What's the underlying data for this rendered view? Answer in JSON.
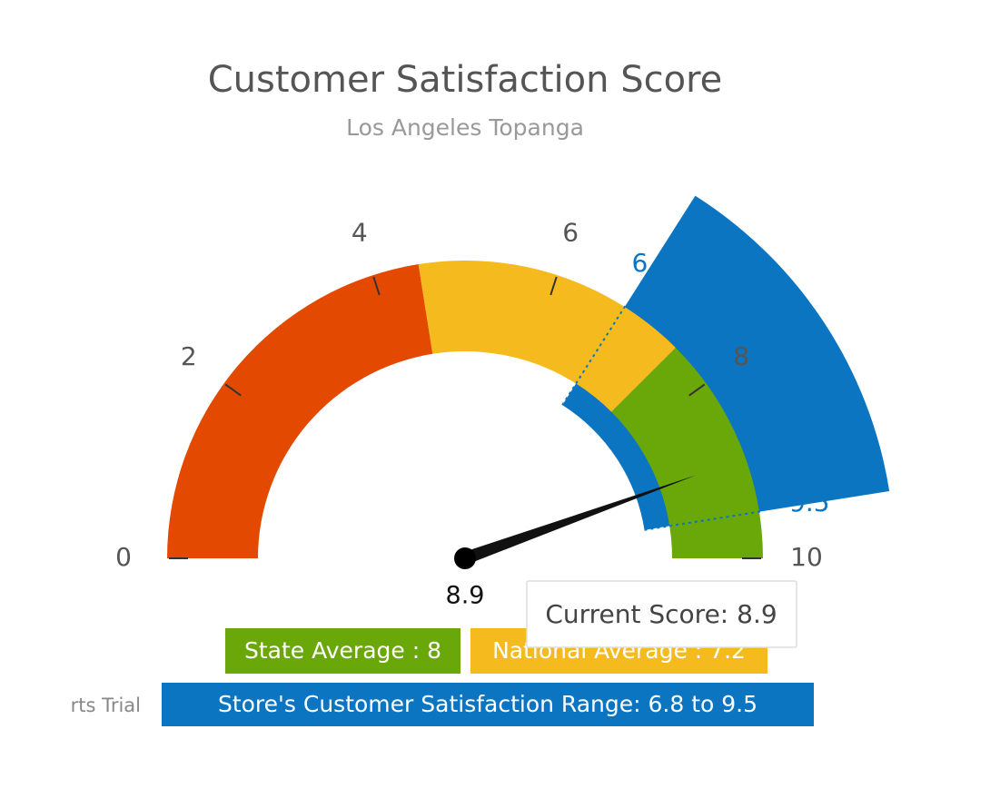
{
  "chart_data": {
    "type": "gauge",
    "title": "Customer Satisfaction Score",
    "subtitle": "Los Angeles Topanga",
    "ylim": [
      0,
      10
    ],
    "yticks": [
      0,
      2,
      4,
      6,
      8,
      10
    ],
    "bands": [
      {
        "from": 0,
        "to": 4.5,
        "color": "#e34a00"
      },
      {
        "from": 4.5,
        "to": 7.5,
        "color": "#f5bb1e"
      },
      {
        "from": 7.5,
        "to": 10,
        "color": "#6aa709"
      }
    ],
    "range": {
      "from": 6.8,
      "to": 9.5,
      "color": "#0b75c2"
    },
    "value": 8.9,
    "tooltip": "Current Score: 8.9",
    "legend": [
      {
        "text": "State Average : 8",
        "color": "#6aa709"
      },
      {
        "text": "National Average : 7.2",
        "color": "#f5bb1e"
      },
      {
        "text": "Store's Customer Satisfaction Range: 6.8 to 9.5",
        "color": "#0b75c2"
      }
    ],
    "watermark": "rts Trial"
  }
}
